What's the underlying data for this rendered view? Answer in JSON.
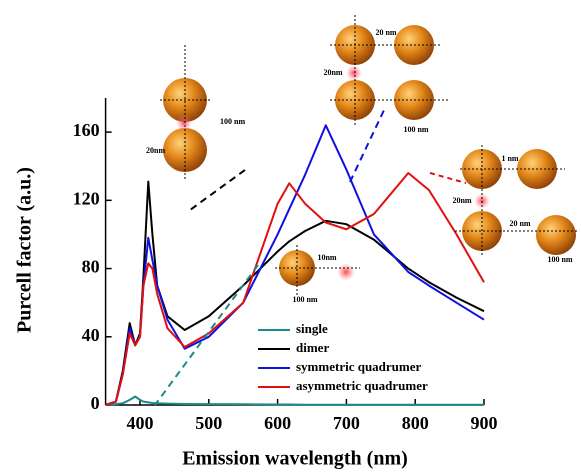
{
  "chart_data": {
    "type": "line",
    "xlabel": "Emission wavelength (nm)",
    "ylabel": "Purcell factor (a.u.)",
    "x": [
      350,
      365,
      375,
      385,
      393,
      400,
      405,
      412,
      418,
      425,
      440,
      465,
      500,
      550,
      600,
      617,
      640,
      670,
      700,
      740,
      790,
      820,
      860,
      900
    ],
    "series": [
      {
        "name": "single",
        "color": "#1a8a8a",
        "values": [
          0,
          0.5,
          1,
          3,
          5,
          3,
          2,
          1.5,
          1.2,
          1,
          0.8,
          0.6,
          0.5,
          0.4,
          0.3,
          0.3,
          0.2,
          0.2,
          0.2,
          0.1,
          0.1,
          0.1,
          0.1,
          0.1
        ]
      },
      {
        "name": "dimer",
        "color": "#000000",
        "values": [
          0,
          2,
          20,
          48,
          35,
          42,
          75,
          131,
          100,
          70,
          52,
          44,
          52,
          70,
          90,
          96,
          102,
          108,
          106,
          97,
          80,
          72,
          63,
          55
        ]
      },
      {
        "name": "symmetric quadrumer",
        "color": "#1010e0",
        "values": [
          0,
          2,
          18,
          45,
          35,
          40,
          70,
          98,
          85,
          70,
          50,
          33,
          40,
          60,
          100,
          115,
          135,
          164,
          138,
          100,
          78,
          70,
          60,
          50
        ]
      },
      {
        "name": "asymmetric quadrumer",
        "color": "#e01010",
        "values": [
          0,
          2,
          18,
          42,
          35,
          40,
          70,
          83,
          80,
          65,
          45,
          34,
          42,
          60,
          118,
          130,
          118,
          107,
          103,
          112,
          136,
          126,
          100,
          72
        ]
      }
    ],
    "xlim": [
      350,
      900
    ],
    "xticks": [
      400,
      500,
      600,
      700,
      800,
      900
    ],
    "ylim": [
      0,
      180
    ],
    "yticks": [
      0,
      40,
      80,
      120,
      160
    ],
    "annotations": [
      "100 nm",
      "20nm",
      "20 nm",
      "20nm",
      "100 nm",
      "1 nm",
      "20nm",
      "20 nm",
      "100 nm",
      "10nm",
      "100 nm"
    ]
  }
}
